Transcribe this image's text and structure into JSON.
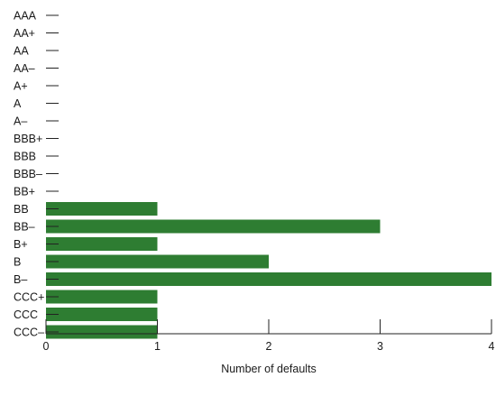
{
  "chart_data": {
    "type": "bar",
    "orientation": "horizontal",
    "title": "",
    "xlabel": "Number of defaults",
    "ylabel": "",
    "xlim": [
      0,
      4
    ],
    "xticks": [
      "0",
      "1",
      "2",
      "3",
      "4"
    ],
    "categories": [
      "AAA",
      "AA+",
      "AA",
      "AA–",
      "A+",
      "A",
      "A–",
      "BBB+",
      "BBB",
      "BBB–",
      "BB+",
      "BB",
      "BB–",
      "B+",
      "B",
      "B–",
      "CCC+",
      "CCC",
      "CCC–"
    ],
    "values": [
      0,
      0,
      0,
      0,
      0,
      0,
      0,
      0,
      0,
      0,
      0,
      1,
      3,
      1,
      2,
      4,
      1,
      1,
      1
    ],
    "bar_color": "#2e7d32",
    "grid": false,
    "legend": "none"
  }
}
